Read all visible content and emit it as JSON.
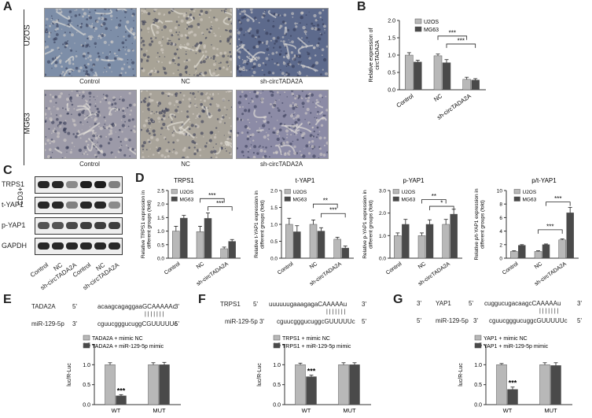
{
  "panels": {
    "A": "A",
    "B": "B",
    "C": "C",
    "D": "D",
    "E": "E",
    "F": "F",
    "G": "G"
  },
  "panelA": {
    "row_labels": [
      "U2OS",
      "MG63"
    ],
    "side_label": "CD3+",
    "captions": [
      "Control",
      "NC",
      "sh-circTADA2A"
    ]
  },
  "panelC": {
    "proteins": [
      "TRPS1",
      "t-YAP1",
      "p-YAP1",
      "GAPDH"
    ],
    "lanes": [
      "Control",
      "NC",
      "sh-circTADA2A",
      "Control",
      "NC",
      "sh-circTADA2A"
    ],
    "band_intensity": [
      [
        0.9,
        0.9,
        0.45,
        0.95,
        0.95,
        0.5
      ],
      [
        0.9,
        0.9,
        0.5,
        0.9,
        0.9,
        0.45
      ],
      [
        0.7,
        0.7,
        0.75,
        0.8,
        0.8,
        0.8
      ],
      [
        0.9,
        0.9,
        0.9,
        0.9,
        0.9,
        0.9
      ]
    ]
  },
  "colors": {
    "light": "#b8b8b8",
    "dark": "#4a4a4a",
    "err": "#222222"
  },
  "chart_data": [
    {
      "id": "B",
      "type": "bar",
      "title": "",
      "ylabel": "Relative expression of circTADA2A",
      "categories": [
        "Control",
        "NC",
        "sh-circTADA2A"
      ],
      "series": [
        {
          "name": "U2OS",
          "values": [
            1.0,
            0.98,
            0.3
          ]
        },
        {
          "name": "MG63",
          "values": [
            0.8,
            0.78,
            0.28
          ]
        }
      ],
      "errors": [
        [
          0.07,
          0.05,
          0.06
        ],
        [
          0.05,
          0.09,
          0.04
        ]
      ],
      "ylim": [
        0,
        2.0
      ],
      "sig": [
        "***",
        "***"
      ]
    },
    {
      "id": "D1",
      "type": "bar",
      "title": "TRPS1",
      "ylabel": "Relative TRPS1 expression in different groups (fold)",
      "categories": [
        "Control",
        "NC",
        "sh-circTADA2A"
      ],
      "series": [
        {
          "name": "U2OS",
          "values": [
            1.0,
            0.98,
            0.35
          ]
        },
        {
          "name": "MG63",
          "values": [
            1.48,
            1.47,
            0.62
          ]
        }
      ],
      "errors": [
        [
          0.18,
          0.2,
          0.06
        ],
        [
          0.1,
          0.2,
          0.07
        ]
      ],
      "ylim": [
        0,
        2.5
      ],
      "sig": [
        "***",
        "***"
      ]
    },
    {
      "id": "D2",
      "type": "bar",
      "title": "t-YAP1",
      "ylabel": "Relative t-YAP1 expression in different groups (fold)",
      "categories": [
        "Control",
        "NC",
        "sh-circTADA2A"
      ],
      "series": [
        {
          "name": "U2OS",
          "values": [
            1.0,
            1.0,
            0.56
          ]
        },
        {
          "name": "MG63",
          "values": [
            0.78,
            0.8,
            0.3
          ]
        }
      ],
      "errors": [
        [
          0.18,
          0.13,
          0.06
        ],
        [
          0.18,
          0.1,
          0.06
        ]
      ],
      "ylim": [
        0,
        2.0
      ],
      "sig": [
        "**",
        "***"
      ]
    },
    {
      "id": "D3",
      "type": "bar",
      "title": "p-YAP1",
      "ylabel": "Relative p-YAP1 expression in different groups (fold)",
      "categories": [
        "Control",
        "NC",
        "sh-circTADA2A"
      ],
      "series": [
        {
          "name": "U2OS",
          "values": [
            1.0,
            1.0,
            1.5
          ]
        },
        {
          "name": "MG63",
          "values": [
            1.5,
            1.5,
            1.95
          ]
        }
      ],
      "errors": [
        [
          0.12,
          0.12,
          0.22
        ],
        [
          0.22,
          0.2,
          0.22
        ]
      ],
      "ylim": [
        0,
        3.0
      ],
      "sig": [
        "**",
        "*"
      ]
    },
    {
      "id": "D4",
      "type": "bar",
      "title": "p/t-YAP1",
      "ylabel": "Relative p/t-YAP1 expression in different groups (fold)",
      "categories": [
        "Control",
        "NC",
        "sh-circTADA2A"
      ],
      "series": [
        {
          "name": "U2OS",
          "values": [
            1.0,
            1.0,
            2.7
          ]
        },
        {
          "name": "MG63",
          "values": [
            1.9,
            2.0,
            6.7
          ]
        }
      ],
      "errors": [
        [
          0.1,
          0.1,
          0.15
        ],
        [
          0.1,
          0.1,
          0.8
        ]
      ],
      "ylim": [
        0,
        10
      ],
      "sig": [
        "***",
        "***"
      ]
    },
    {
      "id": "E",
      "type": "bar",
      "title": "",
      "ylabel": "luc/R-Luc",
      "categories": [
        "WT",
        "MUT"
      ],
      "series": [
        {
          "name": "TADA2A + mimic NC",
          "values": [
            1.0,
            1.0
          ]
        },
        {
          "name": "TADA2A + miR-129-5p mimic",
          "values": [
            0.22,
            1.0
          ]
        }
      ],
      "errors": [
        [
          0.05,
          0.05
        ],
        [
          0.03,
          0.06
        ]
      ],
      "ylim": [
        0,
        1.5
      ],
      "sig": [
        "***"
      ]
    },
    {
      "id": "F",
      "type": "bar",
      "title": "",
      "ylabel": "luc/R-Luc",
      "categories": [
        "WT",
        "MUT"
      ],
      "series": [
        {
          "name": "TRPS1 + mimic NC",
          "values": [
            1.0,
            1.0
          ]
        },
        {
          "name": "TRPS1 + miR-129-5p mimic",
          "values": [
            0.7,
            1.0
          ]
        }
      ],
      "errors": [
        [
          0.04,
          0.05
        ],
        [
          0.04,
          0.05
        ]
      ],
      "ylim": [
        0,
        1.5
      ],
      "sig": [
        "***"
      ]
    },
    {
      "id": "G",
      "type": "bar",
      "title": "",
      "ylabel": "luc/R-Luc",
      "categories": [
        "WT",
        "MUT"
      ],
      "series": [
        {
          "name": "YAP1 + mimic NC",
          "values": [
            1.0,
            1.0
          ]
        },
        {
          "name": "YAP1 + miR-129-5p mimic",
          "values": [
            0.38,
            0.98
          ]
        }
      ],
      "errors": [
        [
          0.03,
          0.05
        ],
        [
          0.06,
          0.07
        ]
      ],
      "ylim": [
        0,
        1.5
      ],
      "sig": [
        "***"
      ]
    }
  ],
  "sequences": {
    "E": {
      "top_name": "TADA2A",
      "top_prime_l": "5'",
      "top_seq": "acaagcagaggaaGCAAAAAc",
      "top_prime_r": "3'",
      "bars": "| | | | | | |",
      "bot_name": "miR-129-5p",
      "bot_prime_l": "3'",
      "bot_seq": "cguucgggucuggCGUUUUUc",
      "bot_prime_r": "5'"
    },
    "F": {
      "top_name": "TRPS1",
      "top_prime_l": "5'",
      "top_seq": "uuuuuugaaagagaCAAAAAu",
      "top_prime_r": "3'",
      "bars": "| | | | | | |",
      "bot_name": "miR-129-5p",
      "bot_prime_l": "3'",
      "bot_seq": "cguucgggucuggcGUUUUUc",
      "bot_prime_r": "5'"
    },
    "G": {
      "lead_top": "3'",
      "top_name": "YAP1",
      "top_prime_l": "5'",
      "top_seq": "cuggucugacaagcCAAAAAu",
      "top_prime_r": "3'",
      "bars": "| | | | | | |",
      "lead_bot": "5'",
      "bot_name": "miR-129-5p",
      "bot_prime_l": "3'",
      "bot_seq": "cguucgggucuggcGUUUUUc",
      "bot_prime_r": "5'"
    }
  }
}
